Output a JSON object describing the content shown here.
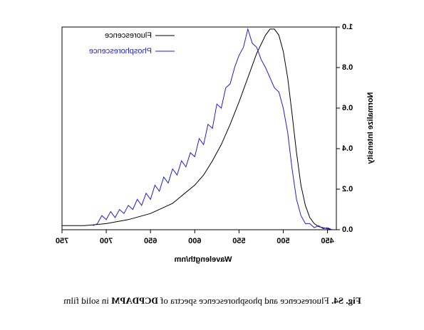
{
  "chart_data": {
    "type": "line",
    "xlabel": "Wavelength/nm",
    "ylabel": "Normalize Intensity",
    "xlim": [
      440,
      750
    ],
    "xticks": [
      450,
      500,
      550,
      600,
      650,
      700,
      750
    ],
    "ylim": [
      0,
      1.0
    ],
    "yticks": [
      {
        "value": 0,
        "label": "0.0"
      },
      0.2,
      0.4,
      0.6,
      0.8,
      {
        "value": 1,
        "label": "1.0"
      }
    ],
    "legend": "top-right",
    "caption": [
      "Fig. S4.",
      " Fluorescence and phosphorescence spectra of ",
      "DCPDAPM",
      " in solid film"
    ],
    "series": [
      {
        "name": "Fluorescence",
        "color": "#000000",
        "x": [
          445,
          450,
          455,
          460,
          465,
          470,
          475,
          480,
          485,
          490,
          495,
          500,
          505,
          510,
          515,
          520,
          530,
          540,
          550,
          560,
          570,
          580,
          590,
          600,
          625,
          650,
          675,
          700,
          725,
          750
        ],
        "values": [
          0.0,
          0.005,
          0.01,
          0.015,
          0.03,
          0.06,
          0.12,
          0.22,
          0.38,
          0.57,
          0.75,
          0.88,
          0.96,
          0.99,
          0.99,
          0.96,
          0.87,
          0.75,
          0.63,
          0.52,
          0.42,
          0.34,
          0.27,
          0.22,
          0.13,
          0.08,
          0.05,
          0.03,
          0.02,
          0.02
        ]
      },
      {
        "name": "Phosphorescence",
        "color": "#1f1fcc",
        "x": [
          445,
          450,
          455,
          460,
          465,
          470,
          475,
          480,
          485,
          490,
          495,
          500,
          505,
          510,
          515,
          520,
          525,
          530,
          535,
          540,
          545,
          550,
          555,
          560,
          565,
          570,
          575,
          580,
          585,
          590,
          595,
          600,
          605,
          610,
          615,
          620,
          625,
          630,
          635,
          640,
          645,
          650,
          655,
          660,
          665,
          670,
          675,
          680,
          685,
          690,
          695,
          700,
          705,
          710,
          715
        ],
        "values": [
          0.0,
          0.01,
          0.005,
          0.02,
          0.01,
          0.03,
          0.03,
          0.07,
          0.15,
          0.3,
          0.48,
          0.6,
          0.68,
          0.7,
          0.75,
          0.8,
          0.84,
          0.9,
          0.92,
          0.99,
          0.9,
          0.86,
          0.8,
          0.72,
          0.7,
          0.6,
          0.62,
          0.5,
          0.52,
          0.42,
          0.45,
          0.36,
          0.38,
          0.31,
          0.34,
          0.27,
          0.3,
          0.23,
          0.26,
          0.19,
          0.22,
          0.15,
          0.18,
          0.12,
          0.15,
          0.1,
          0.12,
          0.08,
          0.1,
          0.06,
          0.09,
          0.05,
          0.07,
          0.03,
          0.02
        ]
      }
    ]
  }
}
